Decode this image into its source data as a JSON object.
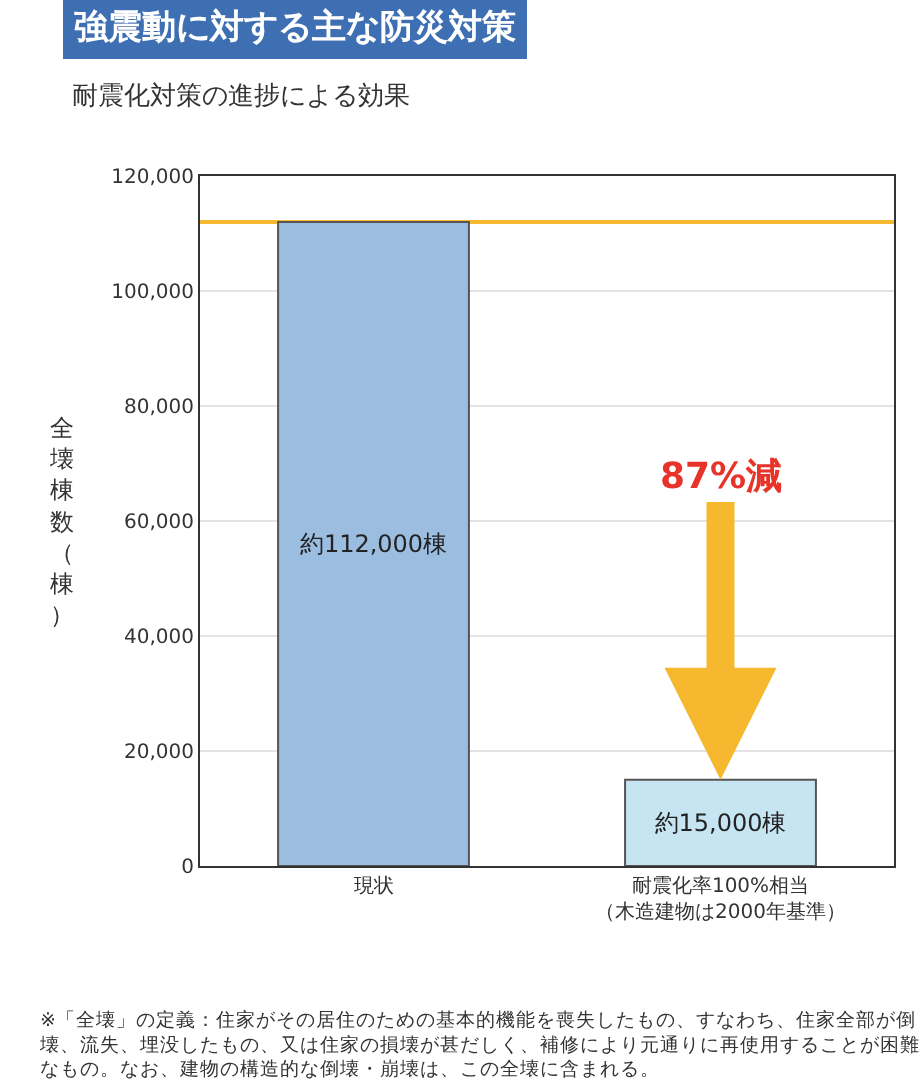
{
  "chart_data": {
    "type": "bar",
    "title": "強震動に対する主な防災対策",
    "subtitle": "耐震化対策の進捗による効果",
    "ylabel": "全壊棟数（棟）",
    "categories": [
      "現状",
      "耐震化率100%相当（木造建物は2000年基準）"
    ],
    "values": [
      112000,
      15000
    ],
    "colors": [
      "#9bbde0",
      "#c6e4f1"
    ],
    "value_labels": [
      "約112,000棟",
      "約15,000棟"
    ],
    "ylim": [
      0,
      120000
    ],
    "yticks": [
      {
        "value": 0,
        "label": "0"
      },
      {
        "value": 20000,
        "label": "20,000"
      },
      {
        "value": 40000,
        "label": "40,000"
      },
      {
        "value": 60000,
        "label": "60,000"
      },
      {
        "value": 80000,
        "label": "80,000"
      },
      {
        "value": 100000,
        "label": "100,000"
      },
      {
        "value": 120000,
        "label": "120,000"
      }
    ],
    "grid": "y",
    "ref_lines": [
      {
        "axis": "y",
        "value": 112000,
        "color": "#f5b82e"
      }
    ],
    "annotations": [
      "87%減",
      "※「全壊」の定義：住家がその居住のための基本的機能を喪失したもの、すなわち、住家全部が倒壊、流失、埋没したもの、又は住家の損壊が甚だしく、補修により元通りに再使用することが困難なもの。なお、建物の構造的な倒壊・崩壊は、この全壊に含まれる。"
    ]
  }
}
